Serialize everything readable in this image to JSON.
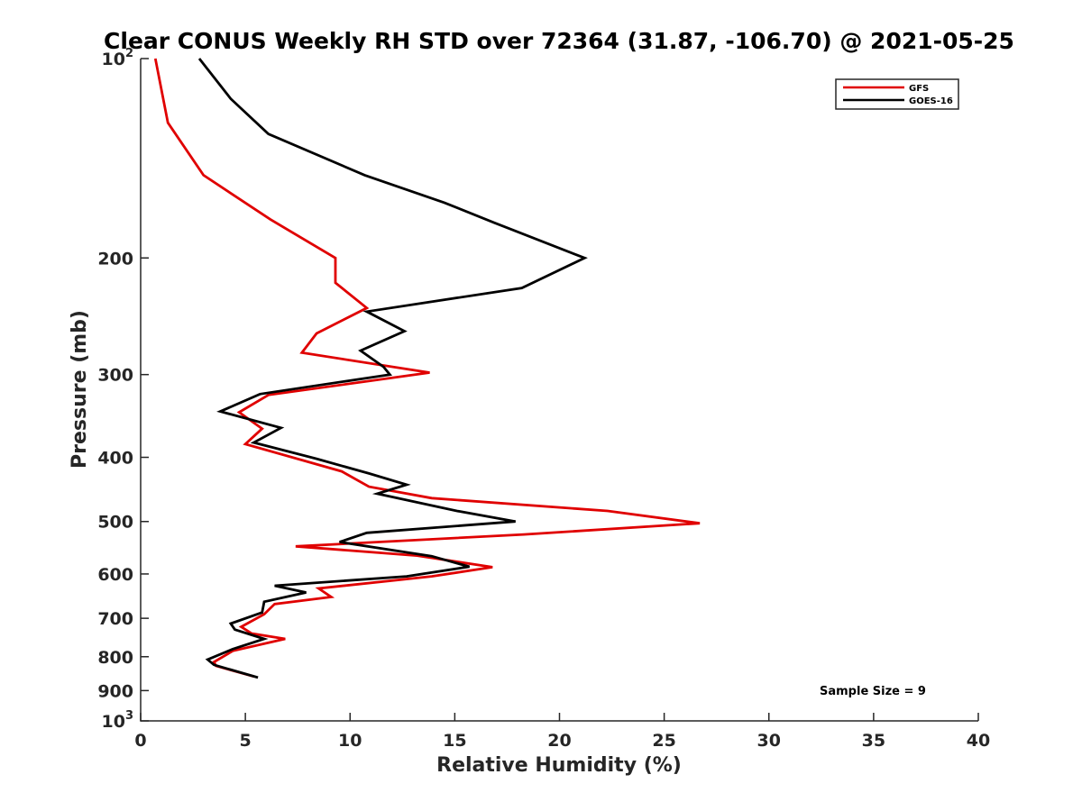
{
  "chart_data": {
    "type": "line",
    "title": "Clear CONUS Weekly RH STD over 72364 (31.87, -106.70) @ 2021-05-25",
    "xlabel": "Relative Humidity (%)",
    "ylabel": "Pressure (mb)",
    "xlim": [
      0,
      40
    ],
    "ylim": [
      100,
      1000
    ],
    "y_scale": "log",
    "y_reversed": true,
    "grid": false,
    "legend_position": "top-right",
    "x_ticks": [
      {
        "value": 0,
        "label": "0"
      },
      {
        "value": 5,
        "label": "5"
      },
      {
        "value": 10,
        "label": "10"
      },
      {
        "value": 15,
        "label": "15"
      },
      {
        "value": 20,
        "label": "20"
      },
      {
        "value": 25,
        "label": "25"
      },
      {
        "value": 30,
        "label": "30"
      },
      {
        "value": 35,
        "label": "35"
      },
      {
        "value": 40,
        "label": "40"
      }
    ],
    "y_ticks": [
      {
        "value": 100,
        "label": "10",
        "sup": "2"
      },
      {
        "value": 200,
        "label": "200",
        "sup": ""
      },
      {
        "value": 300,
        "label": "300",
        "sup": ""
      },
      {
        "value": 400,
        "label": "400",
        "sup": ""
      },
      {
        "value": 500,
        "label": "500",
        "sup": ""
      },
      {
        "value": 600,
        "label": "600",
        "sup": ""
      },
      {
        "value": 700,
        "label": "700",
        "sup": ""
      },
      {
        "value": 800,
        "label": "800",
        "sup": ""
      },
      {
        "value": 900,
        "label": "900",
        "sup": ""
      },
      {
        "value": 1000,
        "label": "10",
        "sup": "3"
      }
    ],
    "series": [
      {
        "name": "GFS",
        "color": "#e00000",
        "points": [
          [
            0.7,
            100
          ],
          [
            1.3,
            125
          ],
          [
            3.0,
            150
          ],
          [
            6.2,
            175
          ],
          [
            9.3,
            200
          ],
          [
            9.3,
            218
          ],
          [
            10.8,
            238
          ],
          [
            8.4,
            260
          ],
          [
            7.7,
            278
          ],
          [
            13.8,
            298
          ],
          [
            6.1,
            322
          ],
          [
            4.7,
            342
          ],
          [
            5.8,
            362
          ],
          [
            5.0,
            382
          ],
          [
            9.6,
            420
          ],
          [
            10.9,
            443
          ],
          [
            13.9,
            461
          ],
          [
            22.3,
            482
          ],
          [
            26.7,
            503
          ],
          [
            18.3,
            523
          ],
          [
            7.4,
            545
          ],
          [
            13.2,
            563
          ],
          [
            16.8,
            586
          ],
          [
            13.9,
            605
          ],
          [
            8.5,
            631
          ],
          [
            9.1,
            650
          ],
          [
            6.4,
            666
          ],
          [
            5.9,
            690
          ],
          [
            4.8,
            721
          ],
          [
            5.3,
            738
          ],
          [
            6.9,
            752
          ],
          [
            4.4,
            784
          ],
          [
            3.5,
            815
          ],
          [
            3.6,
            826
          ],
          [
            5.4,
            857
          ]
        ]
      },
      {
        "name": "GOES-16",
        "color": "#000000",
        "points": [
          [
            2.8,
            100
          ],
          [
            4.3,
            115
          ],
          [
            6.1,
            130
          ],
          [
            10.7,
            150
          ],
          [
            14.5,
            165
          ],
          [
            16.9,
            177
          ],
          [
            21.2,
            200
          ],
          [
            18.2,
            222
          ],
          [
            10.8,
            241
          ],
          [
            12.6,
            258
          ],
          [
            10.5,
            276
          ],
          [
            11.6,
            292
          ],
          [
            11.9,
            300
          ],
          [
            5.7,
            321
          ],
          [
            3.8,
            341
          ],
          [
            6.7,
            361
          ],
          [
            5.4,
            380
          ],
          [
            8.4,
            402
          ],
          [
            10.9,
            423
          ],
          [
            12.7,
            440
          ],
          [
            11.3,
            454
          ],
          [
            15.1,
            482
          ],
          [
            17.9,
            500
          ],
          [
            10.8,
            520
          ],
          [
            9.5,
            537
          ],
          [
            13.9,
            564
          ],
          [
            15.7,
            585
          ],
          [
            12.7,
            605
          ],
          [
            6.4,
            625
          ],
          [
            7.9,
            640
          ],
          [
            5.9,
            661
          ],
          [
            5.8,
            686
          ],
          [
            4.3,
            713
          ],
          [
            4.5,
            728
          ],
          [
            5.9,
            752
          ],
          [
            4.4,
            779
          ],
          [
            3.2,
            808
          ],
          [
            3.5,
            823
          ],
          [
            5.6,
            860
          ]
        ]
      }
    ],
    "annotations": [
      {
        "text": "Sample Size = 9",
        "x": 35,
        "y": 900
      }
    ]
  }
}
